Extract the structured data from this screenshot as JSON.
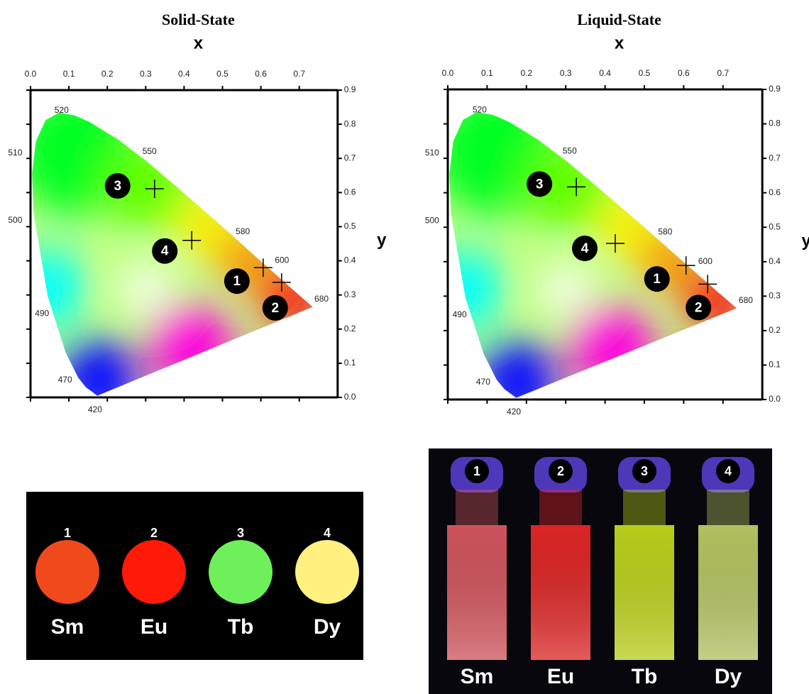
{
  "chart_data": [
    {
      "type": "cie",
      "title": "Solid-State",
      "xlabel": "x",
      "ylabel": "y",
      "xlim": [
        0,
        0.8
      ],
      "ylim": [
        0,
        0.9
      ],
      "xticks": [
        {
          "value": 0,
          "label": "0.0"
        },
        0.1,
        0.2,
        0.3,
        0.4,
        0.5,
        0.6,
        0.7
      ],
      "yticks": [
        {
          "value": 0,
          "label": "0.0"
        },
        0.1,
        0.2,
        0.3,
        0.4,
        0.5,
        0.6,
        0.7,
        0.8,
        0.9
      ],
      "wavelength_labels": [
        "520",
        "550",
        "510",
        "500",
        "580",
        "600",
        "490",
        "680",
        "470",
        "420"
      ],
      "points": {
        "labels": [
          1,
          2,
          3,
          4
        ],
        "x": [
          0.606,
          0.654,
          0.323,
          0.42
        ],
        "y": [
          0.38,
          0.337,
          0.611,
          0.46
        ]
      },
      "marker_color": "#000000"
    },
    {
      "type": "cie",
      "title": "Liquid-State",
      "xlabel": "x",
      "ylabel": "y",
      "xlim": [
        0,
        0.8
      ],
      "ylim": [
        0,
        0.9
      ],
      "xticks": [
        {
          "value": 0,
          "label": "0.0"
        },
        0.1,
        0.2,
        0.3,
        0.4,
        0.5,
        0.6,
        0.7
      ],
      "yticks": [
        {
          "value": 0,
          "label": "0.0"
        },
        0.1,
        0.2,
        0.3,
        0.4,
        0.5,
        0.6,
        0.7,
        0.8,
        0.9
      ],
      "wavelength_labels": [
        "520",
        "550",
        "510",
        "500",
        "580",
        "600",
        "490",
        "680",
        "470",
        "420"
      ],
      "points": {
        "labels": [
          1,
          2,
          3,
          4
        ],
        "x": [
          0.606,
          0.661,
          0.327,
          0.426
        ],
        "y": [
          0.389,
          0.335,
          0.617,
          0.453
        ]
      },
      "marker_color": "#000000"
    }
  ],
  "samples": {
    "solid": {
      "labels": [
        1,
        2,
        3,
        4
      ],
      "names": [
        "Sm",
        "Eu",
        "Tb",
        "Dy"
      ],
      "colors": [
        "#f04a1c",
        "#ff1a08",
        "#6ef05a",
        "#fff080"
      ]
    },
    "liquid": {
      "labels": [
        1,
        2,
        3,
        4
      ],
      "names": [
        "Sm",
        "Eu",
        "Tb",
        "Dy"
      ],
      "colors": [
        "#f0606a",
        "#ff2a2a",
        "#d8f020",
        "#d0e070"
      ]
    }
  }
}
